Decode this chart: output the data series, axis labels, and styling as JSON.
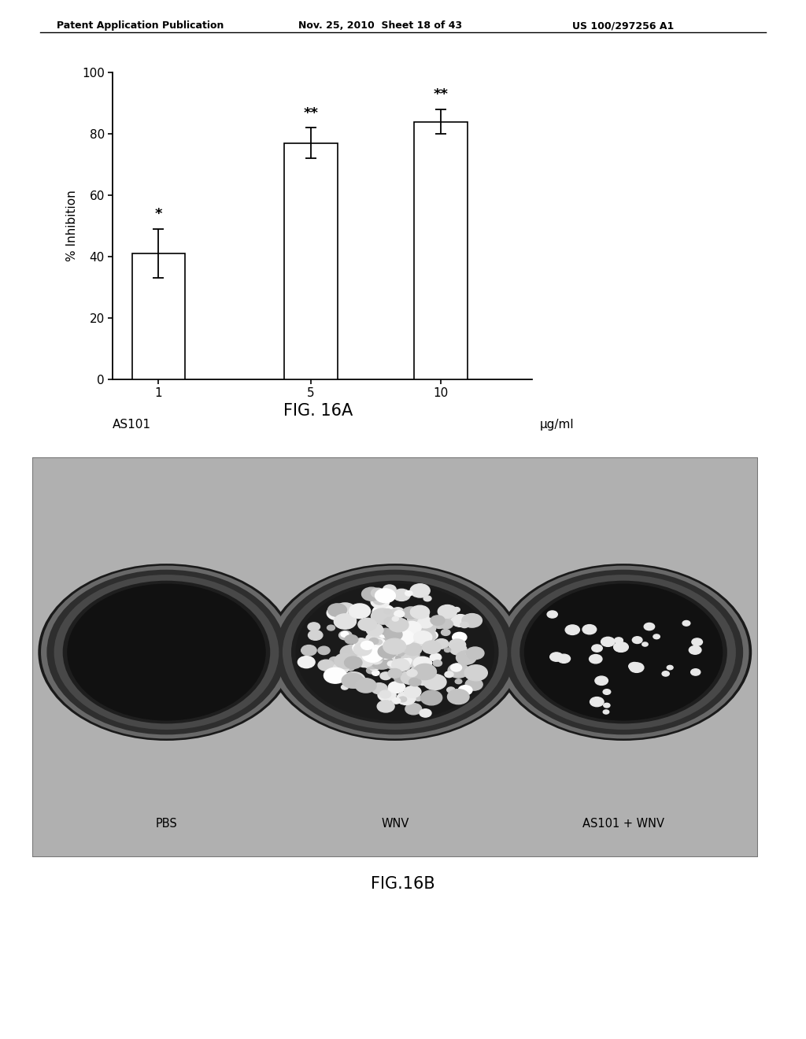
{
  "header_left": "Patent Application Publication",
  "header_mid": "Nov. 25, 2010  Sheet 18 of 43",
  "header_right": "US 100/297256 A1",
  "bar_labels": [
    "1",
    "5",
    "10"
  ],
  "bar_values": [
    41,
    77,
    84
  ],
  "bar_errors": [
    8,
    5,
    4
  ],
  "bar_color": "#ffffff",
  "bar_edgecolor": "#000000",
  "ylabel": "% Inhibition",
  "ylim": [
    0,
    100
  ],
  "yticks": [
    0,
    20,
    40,
    60,
    80,
    100
  ],
  "xlabel_unit": "μg/ml",
  "star_labels": [
    "*",
    "**",
    "**"
  ],
  "fig16a_caption": "FIG. 16A",
  "fig16b_caption": "FIG.16B",
  "panel_labels": [
    "PBS",
    "WNV",
    "AS101 + WNV"
  ],
  "background_color": "#ffffff",
  "font_color": "#000000"
}
